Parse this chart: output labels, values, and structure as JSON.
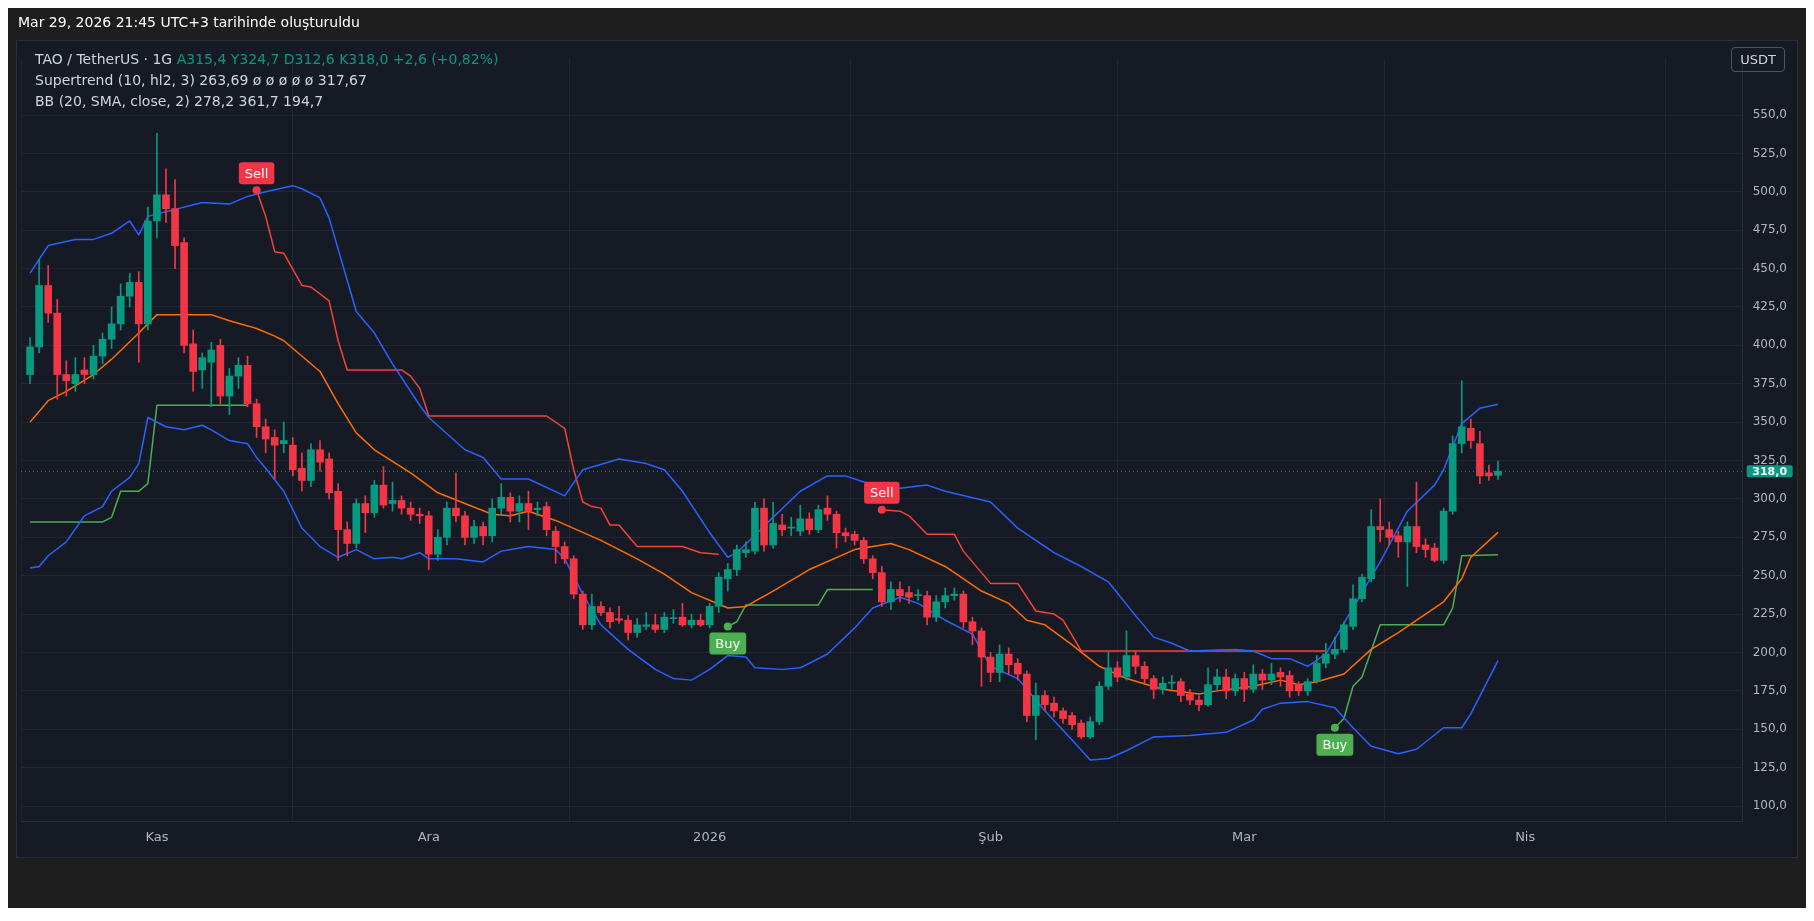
{
  "chart_data": {
    "type": "candlestick",
    "title": "TAO / TetherUS · 1G",
    "annotations": [
      "Mar 29, 2026 21:45 UTC+3 tarihinde oluşturuldu",
      "A315,4 Y324,7 D312,6 K318,0 +2,6 (+0,82%)",
      "Supertrend (10, hl2, 3) 263,69 ø ø ø ø ø 317,67",
      "BB (20, SMA, close, 2) 278,2 361,7 194,7",
      "USDT",
      {
        "text": "Sell",
        "x": "2025-11-12",
        "y": 501
      },
      {
        "text": "Buy",
        "x": "2026-01-03",
        "y": 217
      },
      {
        "text": "Sell",
        "x": "2026-01-20",
        "y": 293
      },
      {
        "text": "Buy",
        "x": "2026-03-11",
        "y": 151
      }
    ],
    "x": [
      "2025-10-18",
      "2025-10-19",
      "2025-10-20",
      "2025-10-21",
      "2025-10-22",
      "2025-10-23",
      "2025-10-24",
      "2025-10-25",
      "2025-10-26",
      "2025-10-27",
      "2025-10-28",
      "2025-10-29",
      "2025-10-30",
      "2025-10-31",
      "2025-11-01",
      "2025-11-02",
      "2025-11-03",
      "2025-11-04",
      "2025-11-05",
      "2025-11-06",
      "2025-11-07",
      "2025-11-08",
      "2025-11-09",
      "2025-11-10",
      "2025-11-11",
      "2025-11-12",
      "2025-11-13",
      "2025-11-14",
      "2025-11-15",
      "2025-11-16",
      "2025-11-17",
      "2025-11-18",
      "2025-11-19",
      "2025-11-20",
      "2025-11-21",
      "2025-11-22",
      "2025-11-23",
      "2025-11-24",
      "2025-11-25",
      "2025-11-26",
      "2025-11-27",
      "2025-11-28",
      "2025-11-29",
      "2025-11-30",
      "2025-12-01",
      "2025-12-02",
      "2025-12-03",
      "2025-12-04",
      "2025-12-05",
      "2025-12-06",
      "2025-12-07",
      "2025-12-08",
      "2025-12-09",
      "2025-12-10",
      "2025-12-11",
      "2025-12-12",
      "2025-12-13",
      "2025-12-14",
      "2025-12-15",
      "2025-12-16",
      "2025-12-17",
      "2025-12-18",
      "2025-12-19",
      "2025-12-20",
      "2025-12-21",
      "2025-12-22",
      "2025-12-23",
      "2025-12-24",
      "2025-12-25",
      "2025-12-26",
      "2025-12-27",
      "2025-12-28",
      "2025-12-29",
      "2025-12-30",
      "2025-12-31",
      "2026-01-01",
      "2026-01-02",
      "2026-01-03",
      "2026-01-04",
      "2026-01-05",
      "2026-01-06",
      "2026-01-07",
      "2026-01-08",
      "2026-01-09",
      "2026-01-10",
      "2026-01-11",
      "2026-01-12",
      "2026-01-13",
      "2026-01-14",
      "2026-01-15",
      "2026-01-16",
      "2026-01-17",
      "2026-01-18",
      "2026-01-19",
      "2026-01-20",
      "2026-01-21",
      "2026-01-22",
      "2026-01-23",
      "2026-01-24",
      "2026-01-25",
      "2026-01-26",
      "2026-01-27",
      "2026-01-28",
      "2026-01-29",
      "2026-01-30",
      "2026-01-31",
      "2026-02-01",
      "2026-02-02",
      "2026-02-03",
      "2026-02-04",
      "2026-02-05",
      "2026-02-06",
      "2026-02-07",
      "2026-02-08",
      "2026-02-09",
      "2026-02-10",
      "2026-02-11",
      "2026-02-12",
      "2026-02-13",
      "2026-02-14",
      "2026-02-15",
      "2026-02-16",
      "2026-02-17",
      "2026-02-18",
      "2026-02-19",
      "2026-02-20",
      "2026-02-21",
      "2026-02-22",
      "2026-02-23",
      "2026-02-24",
      "2026-02-25",
      "2026-02-26",
      "2026-02-27",
      "2026-02-28",
      "2026-03-01",
      "2026-03-02",
      "2026-03-03",
      "2026-03-04",
      "2026-03-05",
      "2026-03-06",
      "2026-03-07",
      "2026-03-08",
      "2026-03-09",
      "2026-03-10",
      "2026-03-11",
      "2026-03-12",
      "2026-03-13",
      "2026-03-14",
      "2026-03-15",
      "2026-03-16",
      "2026-03-17",
      "2026-03-18",
      "2026-03-19",
      "2026-03-20",
      "2026-03-21",
      "2026-03-22",
      "2026-03-23",
      "2026-03-24",
      "2026-03-25",
      "2026-03-26",
      "2026-03-27",
      "2026-03-28",
      "2026-03-29"
    ],
    "ohlc": [
      [
        381,
        405,
        375,
        399
      ],
      [
        399,
        456,
        395,
        439
      ],
      [
        439,
        452,
        415,
        421
      ],
      [
        421,
        430,
        365,
        381
      ],
      [
        381,
        390,
        367,
        377
      ],
      [
        375,
        392,
        370,
        381
      ],
      [
        384,
        392,
        375,
        381
      ],
      [
        381,
        400,
        378,
        393
      ],
      [
        393,
        408,
        388,
        404
      ],
      [
        404,
        425,
        398,
        414
      ],
      [
        414,
        440,
        410,
        432
      ],
      [
        432,
        447,
        425,
        441
      ],
      [
        441,
        448,
        389,
        414
      ],
      [
        414,
        490,
        410,
        481
      ],
      [
        481,
        538,
        470,
        498
      ],
      [
        498,
        515,
        480,
        489
      ],
      [
        489,
        508,
        450,
        465
      ],
      [
        467,
        470,
        395,
        400
      ],
      [
        401,
        410,
        370,
        383
      ],
      [
        384,
        395,
        372,
        392
      ],
      [
        389,
        402,
        360,
        397
      ],
      [
        400,
        404,
        362,
        367
      ],
      [
        367,
        385,
        355,
        380
      ],
      [
        380,
        392,
        372,
        387
      ],
      [
        387,
        393,
        360,
        362
      ],
      [
        362,
        365,
        340,
        347
      ],
      [
        347,
        352,
        330,
        339
      ],
      [
        340,
        345,
        313,
        335
      ],
      [
        336,
        350,
        330,
        338
      ],
      [
        335,
        340,
        315,
        319
      ],
      [
        320,
        330,
        305,
        312
      ],
      [
        312,
        336,
        308,
        332
      ],
      [
        332,
        338,
        318,
        324
      ],
      [
        326,
        330,
        300,
        304
      ],
      [
        305,
        310,
        260,
        280
      ],
      [
        280,
        285,
        263,
        271
      ],
      [
        271,
        300,
        268,
        297
      ],
      [
        297,
        302,
        278,
        291
      ],
      [
        291,
        312,
        288,
        309
      ],
      [
        309,
        321,
        294,
        296
      ],
      [
        297,
        311,
        292,
        299
      ],
      [
        299,
        302,
        290,
        294
      ],
      [
        294,
        298,
        286,
        290
      ],
      [
        290,
        294,
        284,
        289
      ],
      [
        289,
        292,
        254,
        264
      ],
      [
        264,
        280,
        260,
        275
      ],
      [
        275,
        298,
        270,
        294
      ],
      [
        294,
        317,
        285,
        289
      ],
      [
        289,
        292,
        270,
        275
      ],
      [
        275,
        286,
        271,
        282
      ],
      [
        282,
        285,
        270,
        276
      ],
      [
        276,
        300,
        272,
        294
      ],
      [
        294,
        310,
        290,
        301
      ],
      [
        301,
        304,
        285,
        292
      ],
      [
        292,
        302,
        285,
        297
      ],
      [
        297,
        305,
        280,
        292
      ],
      [
        293,
        298,
        289,
        294
      ],
      [
        295,
        298,
        276,
        280
      ],
      [
        279,
        282,
        258,
        269
      ],
      [
        269,
        272,
        258,
        261
      ],
      [
        261,
        263,
        235,
        238
      ],
      [
        238,
        240,
        215,
        218
      ],
      [
        218,
        238,
        215,
        230
      ],
      [
        230,
        233,
        224,
        226
      ],
      [
        226,
        229,
        216,
        220
      ],
      [
        222,
        230,
        219,
        221
      ],
      [
        221,
        224,
        208,
        213
      ],
      [
        213,
        222,
        210,
        218
      ],
      [
        217,
        226,
        215,
        218
      ],
      [
        218,
        225,
        213,
        215
      ],
      [
        215,
        226,
        213,
        223
      ],
      [
        222,
        228,
        219,
        222
      ],
      [
        223,
        232,
        217,
        218
      ],
      [
        218,
        225,
        216,
        221
      ],
      [
        221,
        225,
        217,
        218
      ],
      [
        218,
        232,
        216,
        230
      ],
      [
        230,
        252,
        226,
        249
      ],
      [
        248,
        258,
        240,
        254
      ],
      [
        254,
        270,
        250,
        267
      ],
      [
        265,
        272,
        262,
        267
      ],
      [
        266,
        298,
        264,
        294
      ],
      [
        294,
        300,
        266,
        270
      ],
      [
        270,
        298,
        268,
        284
      ],
      [
        283,
        290,
        276,
        280
      ],
      [
        281,
        288,
        276,
        281
      ],
      [
        279,
        296,
        276,
        287
      ],
      [
        287,
        291,
        277,
        280
      ],
      [
        280,
        296,
        278,
        293
      ],
      [
        294,
        302,
        286,
        290
      ],
      [
        290,
        292,
        268,
        278
      ],
      [
        278,
        281,
        272,
        276
      ],
      [
        277,
        279,
        270,
        273
      ],
      [
        273,
        275,
        258,
        261
      ],
      [
        261,
        263,
        248,
        252
      ],
      [
        252,
        256,
        230,
        233
      ],
      [
        233,
        246,
        228,
        241
      ],
      [
        241,
        246,
        233,
        237
      ],
      [
        239,
        243,
        232,
        236
      ],
      [
        237,
        241,
        234,
        237
      ],
      [
        237,
        240,
        218,
        223
      ],
      [
        223,
        237,
        220,
        233
      ],
      [
        233,
        242,
        229,
        237
      ],
      [
        237,
        242,
        234,
        238
      ],
      [
        238,
        240,
        216,
        220
      ],
      [
        220,
        223,
        205,
        214
      ],
      [
        214,
        216,
        178,
        197
      ],
      [
        197,
        200,
        181,
        187
      ],
      [
        187,
        205,
        181,
        199
      ],
      [
        199,
        203,
        186,
        192
      ],
      [
        193,
        196,
        182,
        186
      ],
      [
        186,
        188,
        155,
        159
      ],
      [
        159,
        180,
        143,
        172
      ],
      [
        172,
        175,
        162,
        166
      ],
      [
        167,
        171,
        158,
        162
      ],
      [
        162,
        164,
        154,
        157
      ],
      [
        159,
        161,
        150,
        153
      ],
      [
        154,
        156,
        144,
        145
      ],
      [
        145,
        158,
        144,
        155
      ],
      [
        155,
        181,
        153,
        178
      ],
      [
        178,
        200,
        176,
        190
      ],
      [
        190,
        194,
        181,
        184
      ],
      [
        184,
        214,
        182,
        198
      ],
      [
        198,
        201,
        186,
        191
      ],
      [
        191,
        194,
        179,
        183
      ],
      [
        183,
        185,
        170,
        176
      ],
      [
        176,
        184,
        173,
        180
      ],
      [
        180,
        185,
        176,
        180
      ],
      [
        181,
        183,
        168,
        172
      ],
      [
        173,
        176,
        166,
        169
      ],
      [
        169,
        172,
        162,
        166
      ],
      [
        166,
        190,
        165,
        179
      ],
      [
        179,
        189,
        176,
        184
      ],
      [
        184,
        189,
        170,
        175
      ],
      [
        175,
        186,
        172,
        183
      ],
      [
        183,
        187,
        168,
        176
      ],
      [
        176,
        192,
        174,
        186
      ],
      [
        186,
        189,
        176,
        182
      ],
      [
        182,
        193,
        179,
        186
      ],
      [
        187,
        190,
        178,
        184
      ],
      [
        185,
        188,
        171,
        175
      ],
      [
        179,
        181,
        172,
        175
      ],
      [
        175,
        183,
        172,
        181
      ],
      [
        181,
        198,
        180,
        193
      ],
      [
        193,
        206,
        190,
        199
      ],
      [
        199,
        210,
        196,
        202
      ],
      [
        202,
        220,
        200,
        218
      ],
      [
        217,
        244,
        215,
        235
      ],
      [
        235,
        251,
        233,
        249
      ],
      [
        248,
        293,
        246,
        282
      ],
      [
        282,
        300,
        272,
        280
      ],
      [
        280,
        285,
        270,
        275
      ],
      [
        276,
        279,
        262,
        272
      ],
      [
        272,
        285,
        243,
        282
      ],
      [
        282,
        311,
        265,
        269
      ],
      [
        270,
        274,
        262,
        267
      ],
      [
        268,
        271,
        259,
        260
      ],
      [
        260,
        294,
        258,
        292
      ],
      [
        292,
        341,
        290,
        336
      ],
      [
        336,
        377,
        330,
        347
      ],
      [
        346,
        352,
        333,
        338
      ],
      [
        336,
        344,
        310,
        315
      ],
      [
        317,
        322,
        312,
        315
      ],
      [
        315.4,
        324.7,
        312.6,
        318
      ]
    ],
    "colors": [
      "#089981",
      "#089981",
      "#f23645",
      "#f23645",
      "#f23645",
      "#089981",
      "#f23645",
      "#089981",
      "#089981",
      "#089981",
      "#089981",
      "#089981",
      "#f23645",
      "#089981",
      "#089981",
      "#f23645",
      "#f23645",
      "#f23645",
      "#f23645",
      "#089981",
      "#089981",
      "#f23645",
      "#089981",
      "#089981",
      "#f23645",
      "#f23645",
      "#f23645",
      "#f23645",
      "#089981",
      "#f23645",
      "#f23645",
      "#089981",
      "#f23645",
      "#f23645",
      "#f23645",
      "#f23645",
      "#089981",
      "#f23645",
      "#089981",
      "#f23645",
      "#089981",
      "#f23645",
      "#f23645",
      "#f23645",
      "#f23645",
      "#089981",
      "#089981",
      "#f23645",
      "#f23645",
      "#089981",
      "#f23645",
      "#089981",
      "#089981",
      "#f23645",
      "#089981",
      "#f23645",
      "#089981",
      "#f23645",
      "#f23645",
      "#f23645",
      "#f23645",
      "#f23645",
      "#089981",
      "#f23645",
      "#f23645",
      "#f23645",
      "#f23645",
      "#089981",
      "#089981",
      "#f23645",
      "#089981",
      "#089981",
      "#f23645",
      "#089981",
      "#f23645",
      "#089981",
      "#089981",
      "#089981",
      "#089981",
      "#089981",
      "#089981",
      "#f23645",
      "#089981",
      "#f23645",
      "#089981",
      "#089981",
      "#f23645",
      "#089981",
      "#f23645",
      "#f23645",
      "#f23645",
      "#f23645",
      "#f23645",
      "#f23645",
      "#f23645",
      "#089981",
      "#f23645",
      "#f23645",
      "#089981",
      "#f23645",
      "#089981",
      "#089981",
      "#089981",
      "#f23645",
      "#f23645",
      "#f23645",
      "#f23645",
      "#089981",
      "#f23645",
      "#f23645",
      "#f23645",
      "#089981",
      "#f23645",
      "#f23645",
      "#f23645",
      "#f23645",
      "#f23645",
      "#089981",
      "#089981",
      "#089981",
      "#f23645",
      "#089981",
      "#f23645",
      "#f23645",
      "#f23645",
      "#089981",
      "#089981",
      "#f23645",
      "#f23645",
      "#f23645",
      "#089981",
      "#089981",
      "#f23645",
      "#089981",
      "#f23645",
      "#089981",
      "#f23645",
      "#089981",
      "#f23645",
      "#f23645",
      "#f23645",
      "#089981",
      "#089981",
      "#089981",
      "#089981",
      "#089981",
      "#089981",
      "#089981",
      "#089981",
      "#f23645",
      "#f23645",
      "#f23645",
      "#089981",
      "#f23645",
      "#f23645",
      "#f23645",
      "#089981",
      "#089981",
      "#089981",
      "#f23645",
      "#f23645",
      "#f23645",
      "#089981"
    ],
    "series": [
      {
        "type": "line",
        "color": "#2962ff",
        "x": [
          "2025-10-18",
          "2025-10-20",
          "2025-10-23",
          "2025-10-25",
          "2025-10-27",
          "2025-10-29",
          "2025-10-30",
          "2025-10-31",
          "2025-11-06",
          "2025-11-09",
          "2025-11-11",
          "2025-11-13",
          "2025-11-16",
          "2025-11-17",
          "2025-11-19",
          "2025-11-20",
          "2025-11-23",
          "2025-11-25",
          "2025-11-27",
          "2025-11-30",
          "2025-12-01",
          "2025-12-05",
          "2025-12-07",
          "2025-12-09",
          "2025-12-12",
          "2025-12-16",
          "2025-12-18",
          "2025-12-22",
          "2025-12-25",
          "2025-12-27",
          "2025-12-29",
          "2026-01-01",
          "2026-01-03",
          "2026-01-04",
          "2026-01-08",
          "2026-01-11",
          "2026-01-14",
          "2026-01-16",
          "2026-01-18",
          "2026-01-22",
          "2026-01-25",
          "2026-01-27",
          "2026-02-01",
          "2026-02-04",
          "2026-02-08",
          "2026-02-11",
          "2026-02-14",
          "2026-02-17",
          "2026-02-19",
          "2026-02-21",
          "2026-02-23",
          "2026-02-28",
          "2026-03-02",
          "2026-03-04",
          "2026-03-06",
          "2026-03-08",
          "2026-03-10",
          "2026-03-16",
          "2026-03-19",
          "2026-03-22",
          "2026-03-23",
          "2026-03-25",
          "2026-03-27",
          "2026-03-29"
        ],
        "values": [
          447,
          465,
          469,
          469,
          473,
          481,
          472,
          484,
          493,
          492,
          497,
          500,
          504,
          502,
          496,
          483,
          422,
          408,
          388,
          361,
          353,
          332,
          327,
          313,
          313,
          302,
          319,
          326,
          323,
          319,
          305,
          278,
          262,
          265,
          288,
          305,
          315,
          315,
          311,
          307,
          309,
          305,
          298,
          281,
          265,
          256,
          246,
          224,
          210,
          206,
          201,
          202,
          201,
          196,
          196,
          191,
          199,
          259,
          292,
          309,
          319,
          349,
          359,
          361.7
        ]
      },
      {
        "type": "line",
        "color": "#ff6d00",
        "x": [
          "2025-10-18",
          "2025-10-20",
          "2025-10-22",
          "2025-10-25",
          "2025-10-27",
          "2025-10-30",
          "2025-11-01",
          "2025-11-04",
          "2025-11-07",
          "2025-11-09",
          "2025-11-12",
          "2025-11-14",
          "2025-11-15",
          "2025-11-19",
          "2025-11-21",
          "2025-11-23",
          "2025-11-25",
          "2025-11-29",
          "2025-12-02",
          "2025-12-08",
          "2025-12-10",
          "2025-12-12",
          "2025-12-15",
          "2025-12-20",
          "2025-12-24",
          "2025-12-27",
          "2025-12-30",
          "2026-01-03",
          "2026-01-05",
          "2026-01-08",
          "2026-01-12",
          "2026-01-17",
          "2026-01-21",
          "2026-01-23",
          "2026-01-27",
          "2026-01-31",
          "2026-02-03",
          "2026-02-05",
          "2026-02-07",
          "2026-02-10",
          "2026-02-13",
          "2026-02-16",
          "2026-02-20",
          "2026-02-24",
          "2026-02-26",
          "2026-03-02",
          "2026-03-05",
          "2026-03-07",
          "2026-03-09",
          "2026-03-12",
          "2026-03-15",
          "2026-03-18",
          "2026-03-21",
          "2026-03-23",
          "2026-03-25",
          "2026-03-26",
          "2026-03-29"
        ],
        "values": [
          350,
          364,
          370,
          381,
          391,
          408,
          420,
          420,
          420,
          416,
          411,
          406,
          403,
          383,
          362,
          343,
          332,
          317,
          304,
          290,
          289,
          292,
          286,
          273,
          261,
          251,
          239,
          229,
          230,
          240,
          254,
          267,
          271,
          267,
          256,
          240,
          232,
          221,
          218,
          205,
          191,
          183,
          176,
          173,
          175,
          178,
          182,
          179,
          181,
          186,
          202,
          213,
          225,
          233,
          248,
          262,
          278.2
        ]
      },
      {
        "type": "line",
        "color": "#2962ff",
        "x": [
          "2025-10-18",
          "2025-10-19",
          "2025-10-20",
          "2025-10-22",
          "2025-10-24",
          "2025-10-26",
          "2025-10-27",
          "2025-10-29",
          "2025-10-30",
          "2025-10-31",
          "2025-11-02",
          "2025-11-04",
          "2025-11-06",
          "2025-11-07",
          "2025-11-09",
          "2025-11-11",
          "2025-11-12",
          "2025-11-13",
          "2025-11-15",
          "2025-11-17",
          "2025-11-19",
          "2025-11-21",
          "2025-11-23",
          "2025-11-25",
          "2025-11-27",
          "2025-11-28",
          "2025-11-30",
          "2025-12-01",
          "2025-12-04",
          "2025-12-07",
          "2025-12-09",
          "2025-12-12",
          "2025-12-15",
          "2025-12-16",
          "2025-12-18",
          "2025-12-20",
          "2025-12-23",
          "2025-12-26",
          "2025-12-28",
          "2025-12-30",
          "2026-01-01",
          "2026-01-03",
          "2026-01-05",
          "2026-01-06",
          "2026-01-09",
          "2026-01-11",
          "2026-01-14",
          "2026-01-17",
          "2026-01-19",
          "2026-01-22",
          "2026-01-24",
          "2026-01-27",
          "2026-01-30",
          "2026-02-01",
          "2026-02-04",
          "2026-02-07",
          "2026-02-10",
          "2026-02-12",
          "2026-02-14",
          "2026-02-16",
          "2026-02-19",
          "2026-02-23",
          "2026-02-27",
          "2026-03-02",
          "2026-03-03",
          "2026-03-05",
          "2026-03-08",
          "2026-03-11",
          "2026-03-13",
          "2026-03-15",
          "2026-03-18",
          "2026-03-20",
          "2026-03-23",
          "2026-03-25",
          "2026-03-26",
          "2026-03-29"
        ],
        "values": [
          255,
          256,
          263,
          272,
          289,
          295,
          305,
          314,
          323,
          353,
          347,
          345,
          348,
          345,
          338,
          336,
          327,
          320,
          305,
          281,
          269,
          262,
          267,
          261,
          262,
          261,
          265,
          261,
          261,
          259,
          266,
          269,
          267,
          261,
          238,
          218,
          202,
          189,
          183,
          182,
          189,
          198,
          197,
          190,
          189,
          190,
          199,
          216,
          229,
          236,
          232,
          221,
          212,
          191,
          183,
          162,
          143,
          130,
          131,
          136,
          145,
          146,
          148,
          156,
          163,
          167,
          168,
          164,
          151,
          139,
          134,
          137,
          151,
          151,
          160,
          194.7
        ]
      },
      {
        "type": "line",
        "color": "#4caf50",
        "x": [
          "2025-10-18",
          "2025-10-26",
          "2025-10-27",
          "2025-10-28",
          "2025-10-30",
          "2025-10-31",
          "2025-11-01",
          "2025-11-11",
          "2025-11-12",
          "2026-01-03",
          "2026-01-04",
          "2026-01-05",
          "2026-01-13",
          "2026-01-14",
          "2026-01-19",
          "2026-01-20",
          "2026-03-11",
          "2026-03-12",
          "2026-03-13",
          "2026-03-14",
          "2026-03-16",
          "2026-03-23",
          "2026-03-24",
          "2026-03-25",
          "2026-03-29"
        ],
        "values": [
          285,
          285,
          288,
          305,
          305,
          310,
          361,
          361,
          null,
          217,
          220,
          231,
          231,
          241,
          241,
          null,
          151,
          157,
          178,
          184,
          218,
          218,
          229,
          263,
          263.69
        ]
      },
      {
        "type": "line",
        "color": "#f44336",
        "x": [
          "2025-11-12",
          "2025-11-13",
          "2025-11-14",
          "2025-11-15",
          "2025-11-17",
          "2025-11-18",
          "2025-11-20",
          "2025-11-21",
          "2025-11-22",
          "2025-11-28",
          "2025-11-29",
          "2025-11-30",
          "2025-12-01",
          "2025-12-14",
          "2025-12-16",
          "2025-12-17",
          "2025-12-18",
          "2025-12-19",
          "2025-12-20",
          "2025-12-21",
          "2025-12-22",
          "2025-12-24",
          "2025-12-29",
          "2025-12-31",
          "2026-01-02",
          "2026-01-03",
          "2026-01-20",
          "2026-01-22",
          "2026-01-23",
          "2026-01-25",
          "2026-01-28",
          "2026-01-29",
          "2026-02-01",
          "2026-02-04",
          "2026-02-05",
          "2026-02-06",
          "2026-02-08",
          "2026-02-09",
          "2026-02-11",
          "2026-03-10"
        ],
        "values": [
          501,
          484,
          461,
          460,
          439,
          438,
          429,
          403,
          384,
          384,
          380,
          372,
          354,
          354,
          346,
          319,
          298,
          295,
          294,
          283,
          283,
          269,
          269,
          265,
          264,
          null,
          293,
          292,
          289,
          277,
          277,
          266,
          245,
          245,
          236,
          227,
          225,
          221,
          201,
          201
        ]
      }
    ],
    "xlim": [
      "2025-10-17",
      "2026-04-25"
    ],
    "xticks": [
      {
        "value": "2025-11-01",
        "label": "Kas"
      },
      {
        "value": "2025-12-01",
        "label": "Ara"
      },
      {
        "value": "2026-01-01",
        "label": "2026"
      },
      {
        "value": "2026-02-01",
        "label": "Şub"
      },
      {
        "value": "2026-03-01",
        "label": "Mar"
      },
      {
        "value": "2026-04-01",
        "label": "Nis"
      }
    ],
    "ylim": [
      90,
      587
    ],
    "yticks": [
      {
        "value": 100,
        "label": "100,0"
      },
      {
        "value": 125,
        "label": "125,0"
      },
      {
        "value": 150,
        "label": "150,0"
      },
      {
        "value": 175,
        "label": "175,0"
      },
      {
        "value": 200,
        "label": "200,0"
      },
      {
        "value": 225,
        "label": "225,0"
      },
      {
        "value": 250,
        "label": "250,0"
      },
      {
        "value": 275,
        "label": "275,0"
      },
      {
        "value": 300,
        "label": "300,0"
      },
      {
        "value": 325,
        "label": "325,0"
      },
      {
        "value": 350,
        "label": "350,0"
      },
      {
        "value": 375,
        "label": "375,0"
      },
      {
        "value": 400,
        "label": "400,0"
      },
      {
        "value": 425,
        "label": "425,0"
      },
      {
        "value": 450,
        "label": "450,0"
      },
      {
        "value": 475,
        "label": "475,0"
      },
      {
        "value": 500,
        "label": "500,0"
      },
      {
        "value": 525,
        "label": "525,0"
      },
      {
        "value": 550,
        "label": "550,0"
      }
    ],
    "ref_lines": [
      {
        "axis": "y",
        "value": 318,
        "label": "318,0",
        "color": "#089981",
        "line_style": "dotted"
      }
    ],
    "grid": true,
    "legend": false
  }
}
